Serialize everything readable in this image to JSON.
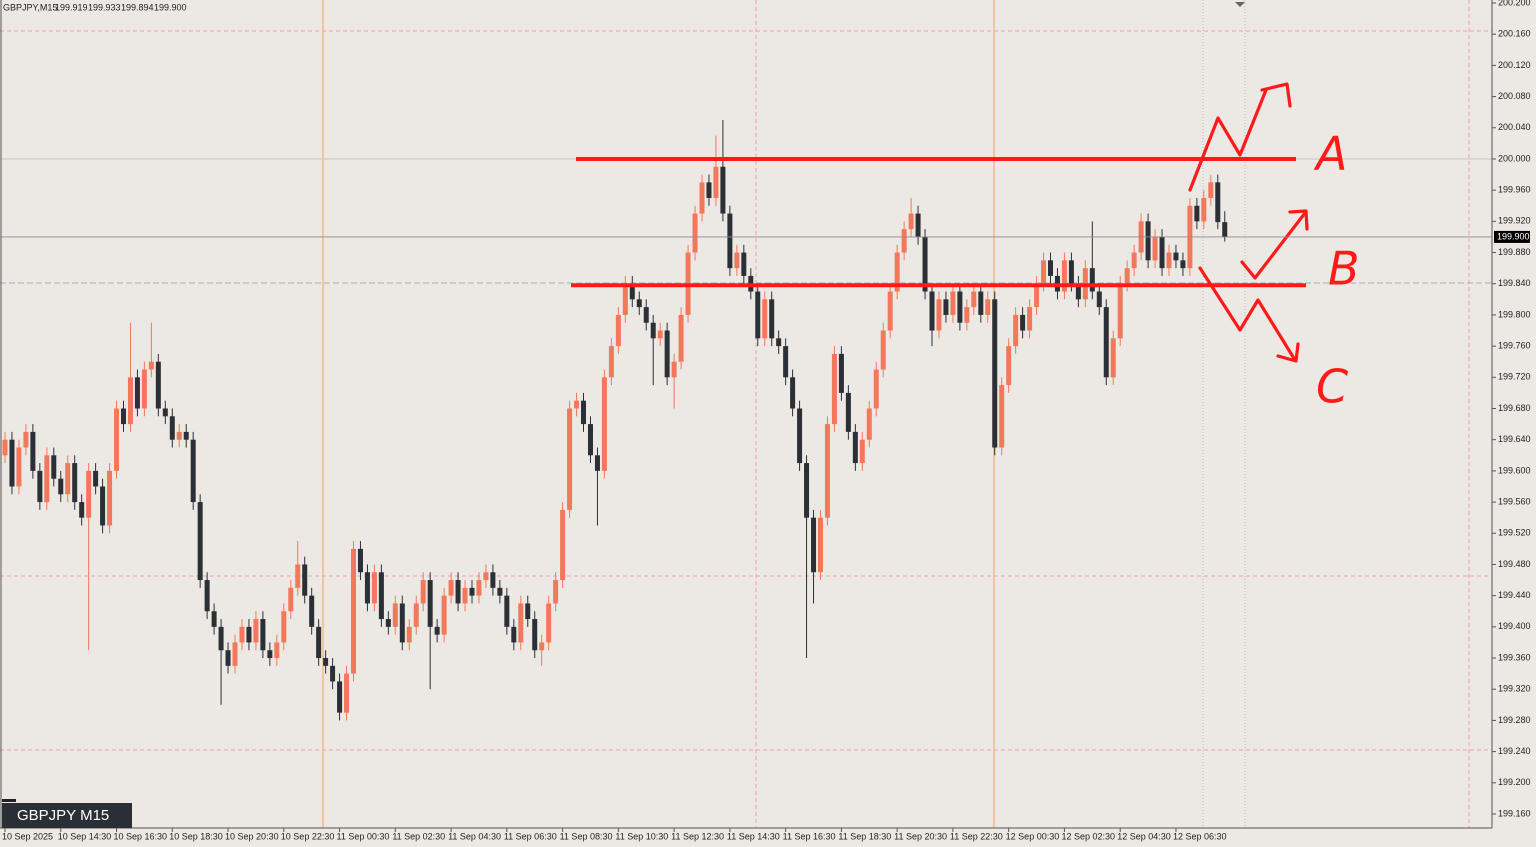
{
  "chart_data": {
    "type": "candlestick",
    "info_line": {
      "symbol": "GBPJPY,M15",
      "values": [
        "199.919",
        "199.933",
        "199.894",
        "199.900"
      ]
    },
    "badge": "GBPJPY M15",
    "up_color": "#f3785b",
    "down_color": "#2b2f36",
    "bid": 199.9,
    "bid_label": "199.900",
    "levels": [
      200,
      199.838
    ],
    "level_color": "#ff1a1a",
    "annotation_labels": [
      "A",
      "B",
      "C"
    ],
    "ylim": [
      199.16,
      200.2
    ],
    "yticks": [
      {
        "value": 200.2,
        "label": "200.200"
      },
      {
        "value": 200.16,
        "label": "200.160"
      },
      {
        "value": 200.12,
        "label": "200.120"
      },
      {
        "value": 200.08,
        "label": "200.080"
      },
      {
        "value": 200.04,
        "label": "200.040"
      },
      {
        "value": 200,
        "label": "200.000"
      },
      {
        "value": 199.96,
        "label": "199.960"
      },
      {
        "value": 199.92,
        "label": "199.920"
      },
      {
        "value": 199.88,
        "label": "199.880"
      },
      {
        "value": 199.84,
        "label": "199.840"
      },
      {
        "value": 199.8,
        "label": "199.800"
      },
      {
        "value": 199.76,
        "label": "199.760"
      },
      {
        "value": 199.72,
        "label": "199.720"
      },
      {
        "value": 199.68,
        "label": "199.680"
      },
      {
        "value": 199.64,
        "label": "199.640"
      },
      {
        "value": 199.6,
        "label": "199.600"
      },
      {
        "value": 199.56,
        "label": "199.560"
      },
      {
        "value": 199.52,
        "label": "199.520"
      },
      {
        "value": 199.48,
        "label": "199.480"
      },
      {
        "value": 199.44,
        "label": "199.440"
      },
      {
        "value": 199.4,
        "label": "199.400"
      },
      {
        "value": 199.36,
        "label": "199.360"
      },
      {
        "value": 199.32,
        "label": "199.320"
      },
      {
        "value": 199.28,
        "label": "199.280"
      },
      {
        "value": 199.24,
        "label": "199.240"
      },
      {
        "value": 199.2,
        "label": "199.200"
      },
      {
        "value": 199.16,
        "label": "199.160"
      }
    ],
    "categories": [
      "10 Sep 2025",
      null,
      null,
      null,
      null,
      null,
      null,
      null,
      "10 Sep 14:30",
      null,
      null,
      null,
      null,
      null,
      null,
      null,
      "10 Sep 16:30",
      null,
      null,
      null,
      null,
      null,
      null,
      null,
      "10 Sep 18:30",
      null,
      null,
      null,
      null,
      null,
      null,
      null,
      "10 Sep 20:30",
      null,
      null,
      null,
      null,
      null,
      null,
      null,
      "10 Sep 22:30",
      null,
      null,
      null,
      null,
      null,
      null,
      null,
      "11 Sep 00:30",
      null,
      null,
      null,
      null,
      null,
      null,
      null,
      "11 Sep 02:30",
      null,
      null,
      null,
      null,
      null,
      null,
      null,
      "11 Sep 04:30",
      null,
      null,
      null,
      null,
      null,
      null,
      null,
      "11 Sep 06:30",
      null,
      null,
      null,
      null,
      null,
      null,
      null,
      "11 Sep 08:30",
      null,
      null,
      null,
      null,
      null,
      null,
      null,
      "11 Sep 10:30",
      null,
      null,
      null,
      null,
      null,
      null,
      null,
      "11 Sep 12:30",
      null,
      null,
      null,
      null,
      null,
      null,
      null,
      "11 Sep 14:30",
      null,
      null,
      null,
      null,
      null,
      null,
      null,
      "11 Sep 16:30",
      null,
      null,
      null,
      null,
      null,
      null,
      null,
      "11 Sep 18:30",
      null,
      null,
      null,
      null,
      null,
      null,
      null,
      "11 Sep 20:30",
      null,
      null,
      null,
      null,
      null,
      null,
      null,
      "11 Sep 22:30",
      null,
      null,
      null,
      null,
      null,
      null,
      null,
      "12 Sep 00:30",
      null,
      null,
      null,
      null,
      null,
      null,
      null,
      "12 Sep 02:30",
      null,
      null,
      null,
      null,
      null,
      null,
      null,
      "12 Sep 04:30",
      null,
      null,
      null,
      null,
      null,
      null,
      null,
      "12 Sep 06:30",
      null,
      null,
      null,
      null,
      null,
      null,
      null
    ],
    "open": [
      199.62,
      199.64,
      199.58,
      199.63,
      199.65,
      199.6,
      199.56,
      199.62,
      199.59,
      199.57,
      199.61,
      199.56,
      199.54,
      199.6,
      199.58,
      199.53,
      199.6,
      199.68,
      199.66,
      199.72,
      199.68,
      199.73,
      199.74,
      199.68,
      199.67,
      199.64,
      199.65,
      199.64,
      199.56,
      199.46,
      199.42,
      199.4,
      199.37,
      199.35,
      199.38,
      199.4,
      199.38,
      199.41,
      199.37,
      199.36,
      199.38,
      199.42,
      199.45,
      199.48,
      199.44,
      199.4,
      199.36,
      199.35,
      199.33,
      199.29,
      199.34,
      199.5,
      199.47,
      199.43,
      199.47,
      199.41,
      199.4,
      199.43,
      199.38,
      199.4,
      199.43,
      199.46,
      199.4,
      199.39,
      199.44,
      199.46,
      199.43,
      199.45,
      199.44,
      199.46,
      199.47,
      199.45,
      199.44,
      199.4,
      199.38,
      199.43,
      199.41,
      199.37,
      199.38,
      199.43,
      199.46,
      199.55,
      199.68,
      199.69,
      199.66,
      199.62,
      199.6,
      199.72,
      199.76,
      199.8,
      199.84,
      199.82,
      199.81,
      199.79,
      199.77,
      199.78,
      199.72,
      199.74,
      199.8,
      199.88,
      199.93,
      199.97,
      199.95,
      199.99,
      199.93,
      199.86,
      199.88,
      199.85,
      199.83,
      199.77,
      199.82,
      199.77,
      199.76,
      199.72,
      199.68,
      199.61,
      199.54,
      199.47,
      199.54,
      199.66,
      199.75,
      199.7,
      199.65,
      199.61,
      199.64,
      199.68,
      199.73,
      199.78,
      199.83,
      199.88,
      199.91,
      199.93,
      199.9,
      199.83,
      199.78,
      199.82,
      199.8,
      199.83,
      199.79,
      199.81,
      199.83,
      199.8,
      199.82,
      199.63,
      199.71,
      199.76,
      199.8,
      199.78,
      199.81,
      199.84,
      199.87,
      199.85,
      199.83,
      199.87,
      199.84,
      199.82,
      199.86,
      199.83,
      199.81,
      199.72,
      199.77,
      199.84,
      199.86,
      199.88,
      199.92,
      199.87,
      199.9,
      199.86,
      199.88,
      199.87,
      199.86,
      199.94,
      199.92,
      199.95,
      199.97,
      199.919
    ],
    "high": [
      199.65,
      199.65,
      199.64,
      199.66,
      199.66,
      199.61,
      199.63,
      199.63,
      199.6,
      199.62,
      199.62,
      199.57,
      199.61,
      199.61,
      199.59,
      199.61,
      199.69,
      199.69,
      199.79,
      199.73,
      199.74,
      199.79,
      199.75,
      199.69,
      199.68,
      199.66,
      199.66,
      199.65,
      199.57,
      199.47,
      199.43,
      199.41,
      199.38,
      199.39,
      199.41,
      199.41,
      199.42,
      199.42,
      199.38,
      199.39,
      199.43,
      199.46,
      199.51,
      199.49,
      199.45,
      199.41,
      199.37,
      199.36,
      199.34,
      199.35,
      199.51,
      199.51,
      199.48,
      199.48,
      199.48,
      199.42,
      199.44,
      199.44,
      199.41,
      199.44,
      199.47,
      199.47,
      199.41,
      199.45,
      199.47,
      199.47,
      199.46,
      199.46,
      199.47,
      199.48,
      199.48,
      199.46,
      199.45,
      199.41,
      199.44,
      199.44,
      199.42,
      199.39,
      199.44,
      199.47,
      199.56,
      199.69,
      199.7,
      199.7,
      199.67,
      199.63,
      199.73,
      199.77,
      199.81,
      199.85,
      199.85,
      199.83,
      199.82,
      199.8,
      199.79,
      199.79,
      199.75,
      199.81,
      199.89,
      199.94,
      199.98,
      199.98,
      200.03,
      200.05,
      199.94,
      199.89,
      199.89,
      199.86,
      199.84,
      199.83,
      199.83,
      199.78,
      199.77,
      199.73,
      199.69,
      199.62,
      199.55,
      199.55,
      199.67,
      199.76,
      199.76,
      199.71,
      199.66,
      199.65,
      199.69,
      199.74,
      199.79,
      199.84,
      199.89,
      199.92,
      199.95,
      199.94,
      199.91,
      199.84,
      199.83,
      199.83,
      199.84,
      199.84,
      199.82,
      199.84,
      199.84,
      199.83,
      199.83,
      199.72,
      199.77,
      199.81,
      199.81,
      199.82,
      199.85,
      199.88,
      199.88,
      199.86,
      199.88,
      199.88,
      199.85,
      199.87,
      199.92,
      199.84,
      199.82,
      199.78,
      199.85,
      199.87,
      199.89,
      199.93,
      199.93,
      199.91,
      199.91,
      199.89,
      199.89,
      199.88,
      199.95,
      199.95,
      199.96,
      199.98,
      199.98,
      199.933
    ],
    "low": [
      199.61,
      199.57,
      199.57,
      199.62,
      199.59,
      199.55,
      199.55,
      199.58,
      199.56,
      199.56,
      199.55,
      199.53,
      199.37,
      199.57,
      199.52,
      199.52,
      199.59,
      199.65,
      199.65,
      199.67,
      199.67,
      199.72,
      199.67,
      199.66,
      199.63,
      199.63,
      199.63,
      199.55,
      199.45,
      199.41,
      199.39,
      199.3,
      199.34,
      199.34,
      199.37,
      199.37,
      199.37,
      199.36,
      199.35,
      199.35,
      199.37,
      199.41,
      199.44,
      199.43,
      199.39,
      199.35,
      199.34,
      199.32,
      199.28,
      199.28,
      199.33,
      199.46,
      199.42,
      199.42,
      199.4,
      199.39,
      199.39,
      199.37,
      199.37,
      199.39,
      199.42,
      199.32,
      199.38,
      199.38,
      199.43,
      199.42,
      199.42,
      199.43,
      199.43,
      199.45,
      199.44,
      199.43,
      199.39,
      199.37,
      199.37,
      199.4,
      199.36,
      199.35,
      199.37,
      199.42,
      199.45,
      199.54,
      199.67,
      199.65,
      199.61,
      199.53,
      199.59,
      199.71,
      199.75,
      199.79,
      199.81,
      199.8,
      199.78,
      199.71,
      199.76,
      199.71,
      199.68,
      199.73,
      199.79,
      199.87,
      199.92,
      199.94,
      199.94,
      199.92,
      199.85,
      199.85,
      199.84,
      199.82,
      199.76,
      199.76,
      199.76,
      199.75,
      199.71,
      199.67,
      199.6,
      199.36,
      199.43,
      199.46,
      199.53,
      199.65,
      199.69,
      199.64,
      199.6,
      199.6,
      199.63,
      199.67,
      199.72,
      199.77,
      199.82,
      199.87,
      199.9,
      199.89,
      199.82,
      199.76,
      199.77,
      199.79,
      199.79,
      199.78,
      199.78,
      199.8,
      199.79,
      199.79,
      199.62,
      199.62,
      199.7,
      199.75,
      199.77,
      199.77,
      199.8,
      199.83,
      199.84,
      199.82,
      199.82,
      199.83,
      199.81,
      199.81,
      199.82,
      199.8,
      199.71,
      199.71,
      199.76,
      199.83,
      199.85,
      199.87,
      199.86,
      199.86,
      199.85,
      199.85,
      199.86,
      199.85,
      199.85,
      199.91,
      199.91,
      199.94,
      199.91,
      199.894
    ],
    "close": [
      199.64,
      199.58,
      199.63,
      199.65,
      199.6,
      199.56,
      199.62,
      199.59,
      199.57,
      199.61,
      199.56,
      199.54,
      199.6,
      199.58,
      199.53,
      199.6,
      199.68,
      199.66,
      199.72,
      199.68,
      199.73,
      199.74,
      199.68,
      199.67,
      199.64,
      199.65,
      199.64,
      199.56,
      199.46,
      199.42,
      199.4,
      199.37,
      199.35,
      199.38,
      199.4,
      199.38,
      199.41,
      199.37,
      199.36,
      199.38,
      199.42,
      199.45,
      199.48,
      199.44,
      199.4,
      199.36,
      199.35,
      199.33,
      199.29,
      199.34,
      199.5,
      199.47,
      199.43,
      199.47,
      199.41,
      199.4,
      199.43,
      199.38,
      199.4,
      199.43,
      199.46,
      199.4,
      199.39,
      199.44,
      199.46,
      199.43,
      199.45,
      199.44,
      199.46,
      199.47,
      199.45,
      199.44,
      199.4,
      199.38,
      199.43,
      199.41,
      199.37,
      199.38,
      199.43,
      199.46,
      199.55,
      199.68,
      199.69,
      199.66,
      199.62,
      199.6,
      199.72,
      199.76,
      199.8,
      199.84,
      199.82,
      199.81,
      199.79,
      199.77,
      199.78,
      199.72,
      199.74,
      199.8,
      199.88,
      199.93,
      199.97,
      199.95,
      199.99,
      199.93,
      199.86,
      199.88,
      199.85,
      199.83,
      199.77,
      199.82,
      199.77,
      199.76,
      199.72,
      199.68,
      199.61,
      199.54,
      199.47,
      199.54,
      199.66,
      199.75,
      199.7,
      199.65,
      199.61,
      199.64,
      199.68,
      199.73,
      199.78,
      199.83,
      199.88,
      199.91,
      199.93,
      199.9,
      199.83,
      199.78,
      199.82,
      199.8,
      199.83,
      199.79,
      199.81,
      199.83,
      199.8,
      199.82,
      199.63,
      199.71,
      199.76,
      199.8,
      199.78,
      199.81,
      199.84,
      199.87,
      199.85,
      199.83,
      199.87,
      199.84,
      199.82,
      199.86,
      199.83,
      199.81,
      199.72,
      199.77,
      199.84,
      199.86,
      199.88,
      199.92,
      199.87,
      199.9,
      199.86,
      199.88,
      199.87,
      199.86,
      199.94,
      199.92,
      199.95,
      199.97,
      199.919,
      199.9
    ]
  }
}
